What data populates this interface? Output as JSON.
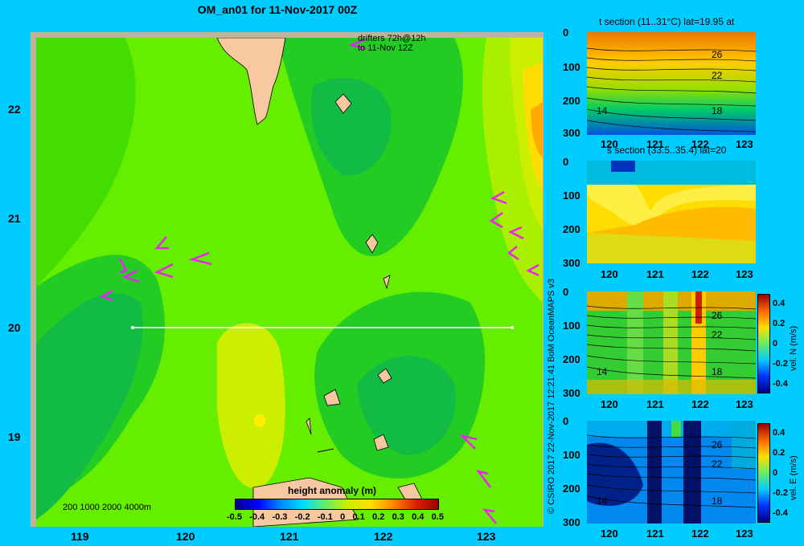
{
  "map": {
    "title": "OM_an01 for 11-Nov-2017 00Z",
    "drifters_line1": "drifters 72h@12h",
    "drifters_line2": "to 11-Nov 12Z",
    "x_ticks": [
      "119",
      "120",
      "121",
      "122",
      "123"
    ],
    "y_ticks": [
      "22",
      "21",
      "20",
      "19"
    ],
    "depth_legend": "200  1000  2000  4000m",
    "colorbar_title": "height anomaly (m)",
    "colorbar_ticks": [
      "-0.5",
      "-0.4",
      "-0.3",
      "-0.2",
      "-0.1",
      "0",
      "0.1",
      "0.2",
      "0.3",
      "0.4",
      "0.5"
    ],
    "credit": "© CSIRO 2017   22-Nov-2017 12:21:41 BoM OceanMAPS v3",
    "colors": {
      "background": "#00ccff",
      "land": "#f8c8a0",
      "drifter": "#ee22ee",
      "section_line": "#ffffff"
    }
  },
  "panels": [
    {
      "title": "t section (11..31°C) lat=19.95 at",
      "y_ticks": [
        "0",
        "100",
        "200",
        "300"
      ],
      "x_ticks": [
        "120",
        "121",
        "122",
        "123"
      ],
      "contour_labels": [
        "26",
        "22",
        "14",
        "18"
      ]
    },
    {
      "title": "s section (33.5..35.4) lat=20",
      "y_ticks": [
        "0",
        "100",
        "200",
        "300"
      ],
      "x_ticks": [
        "120",
        "121",
        "122",
        "123"
      ]
    },
    {
      "title": "",
      "y_ticks": [
        "0",
        "100",
        "200",
        "300"
      ],
      "x_ticks": [
        "120",
        "121",
        "122",
        "123"
      ],
      "contour_labels": [
        "26",
        "22",
        "14",
        "18"
      ],
      "cbar_ticks": [
        "0.4",
        "0.2",
        "0",
        "-0.2",
        "-0.4"
      ],
      "cbar_label": "vel. N (m/s)"
    },
    {
      "title": "",
      "y_ticks": [
        "0",
        "100",
        "200",
        "300"
      ],
      "x_ticks": [
        "120",
        "121",
        "122",
        "123"
      ],
      "contour_labels": [
        "26",
        "22",
        "14",
        "18"
      ],
      "cbar_ticks": [
        "0.4",
        "0.2",
        "0",
        "-0.2",
        "-0.4"
      ],
      "cbar_label": "vel. E (m/s)"
    }
  ]
}
